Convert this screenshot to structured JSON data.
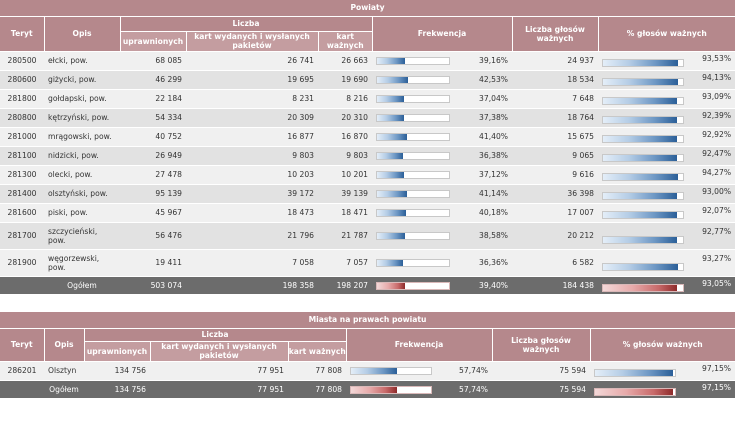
{
  "table1": {
    "title": "Powiaty",
    "headers": {
      "teryt": "Teryt",
      "opis": "Opis",
      "liczba": "Liczba",
      "uprawnionych": "uprawnionych",
      "kart_wydanych": "kart wydanych i wysłanych pakietów",
      "kart_waznych": "kart ważnych",
      "frekwencja": "Frekwencja",
      "glosow_waznych": "Liczba głosów ważnych",
      "pct_waznych": "% głosów ważnych"
    },
    "rows": [
      {
        "teryt": "280500",
        "opis": "ełcki, pow.",
        "uprawnionych": "68 085",
        "kart_wydanych": "26 741",
        "kart_waznych": "26 663",
        "frekwencja": "39,16%",
        "frek_value": 39.16,
        "glosow_waznych": "24 937",
        "pct": "93,53%",
        "pct_value": 93.53
      },
      {
        "teryt": "280600",
        "opis": "giżycki, pow.",
        "uprawnionych": "46 299",
        "kart_wydanych": "19 695",
        "kart_waznych": "19 690",
        "frekwencja": "42,53%",
        "frek_value": 42.53,
        "glosow_waznych": "18 534",
        "pct": "94,13%",
        "pct_value": 94.13
      },
      {
        "teryt": "281800",
        "opis": "gołdapski, pow.",
        "uprawnionych": "22 184",
        "kart_wydanych": "8 231",
        "kart_waznych": "8 216",
        "frekwencja": "37,04%",
        "frek_value": 37.04,
        "glosow_waznych": "7 648",
        "pct": "93,09%",
        "pct_value": 93.09
      },
      {
        "teryt": "280800",
        "opis": "kętrzyński, pow.",
        "uprawnionych": "54 334",
        "kart_wydanych": "20 309",
        "kart_waznych": "20 310",
        "frekwencja": "37,38%",
        "frek_value": 37.38,
        "glosow_waznych": "18 764",
        "pct": "92,39%",
        "pct_value": 92.39
      },
      {
        "teryt": "281000",
        "opis": "mrągowski, pow.",
        "uprawnionych": "40 752",
        "kart_wydanych": "16 877",
        "kart_waznych": "16 870",
        "frekwencja": "41,40%",
        "frek_value": 41.4,
        "glosow_waznych": "15 675",
        "pct": "92,92%",
        "pct_value": 92.92
      },
      {
        "teryt": "281100",
        "opis": "nidzicki, pow.",
        "uprawnionych": "26 949",
        "kart_wydanych": "9 803",
        "kart_waznych": "9 803",
        "frekwencja": "36,38%",
        "frek_value": 36.38,
        "glosow_waznych": "9 065",
        "pct": "92,47%",
        "pct_value": 92.47
      },
      {
        "teryt": "281300",
        "opis": "olecki, pow.",
        "uprawnionych": "27 478",
        "kart_wydanych": "10 203",
        "kart_waznych": "10 201",
        "frekwencja": "37,12%",
        "frek_value": 37.12,
        "glosow_waznych": "9 616",
        "pct": "94,27%",
        "pct_value": 94.27
      },
      {
        "teryt": "281400",
        "opis": "olsztyński, pow.",
        "uprawnionych": "95 139",
        "kart_wydanych": "39 172",
        "kart_waznych": "39 139",
        "frekwencja": "41,14%",
        "frek_value": 41.14,
        "glosow_waznych": "36 398",
        "pct": "93,00%",
        "pct_value": 93.0
      },
      {
        "teryt": "281600",
        "opis": "piski, pow.",
        "uprawnionych": "45 967",
        "kart_wydanych": "18 473",
        "kart_waznych": "18 471",
        "frekwencja": "40,18%",
        "frek_value": 40.18,
        "glosow_waznych": "17 007",
        "pct": "92,07%",
        "pct_value": 92.07
      },
      {
        "teryt": "281700",
        "opis": "szczycieński, pow.",
        "uprawnionych": "56 476",
        "kart_wydanych": "21 796",
        "kart_waznych": "21 787",
        "frekwencja": "38,58%",
        "frek_value": 38.58,
        "glosow_waznych": "20 212",
        "pct": "92,77%",
        "pct_value": 92.77
      },
      {
        "teryt": "281900",
        "opis": "węgorzewski, pow.",
        "uprawnionych": "19 411",
        "kart_wydanych": "7 058",
        "kart_waznych": "7 057",
        "frekwencja": "36,36%",
        "frek_value": 36.36,
        "glosow_waznych": "6 582",
        "pct": "93,27%",
        "pct_value": 93.27
      }
    ],
    "total": {
      "label": "Ogółem",
      "uprawnionych": "503 074",
      "kart_wydanych": "198 358",
      "kart_waznych": "198 207",
      "frekwencja": "39,40%",
      "frek_value": 39.4,
      "glosow_waznych": "184 438",
      "pct": "93,05%",
      "pct_value": 93.05
    }
  },
  "table2": {
    "title": "Miasta na prawach powiatu",
    "headers": {
      "teryt": "Teryt",
      "opis": "Opis",
      "liczba": "Liczba",
      "uprawnionych": "uprawnionych",
      "kart_wydanych": "kart wydanych i wysłanych pakietów",
      "kart_waznych": "kart ważnych",
      "frekwencja": "Frekwencja",
      "glosow_waznych": "Liczba głosów ważnych",
      "pct_waznych": "% głosów ważnych"
    },
    "rows": [
      {
        "teryt": "286201",
        "opis": "Olsztyn",
        "uprawnionych": "134 756",
        "kart_wydanych": "77 951",
        "kart_waznych": "77 808",
        "frekwencja": "57,74%",
        "frek_value": 57.74,
        "glosow_waznych": "75 594",
        "pct": "97,15%",
        "pct_value": 97.15
      }
    ],
    "total": {
      "label": "Ogółem",
      "uprawnionych": "134 756",
      "kart_wydanych": "77 951",
      "kart_waznych": "77 808",
      "frekwencja": "57,74%",
      "frek_value": 57.74,
      "glosow_waznych": "75 594",
      "pct": "97,15%",
      "pct_value": 97.15
    }
  },
  "colors": {
    "header": "#b5888c",
    "total_row": "#6c6c6c",
    "bar_blue": "#2b5f98",
    "bar_red": "#8e2a2a"
  }
}
